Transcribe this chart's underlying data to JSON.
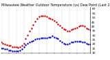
{
  "title": "Milwaukee Weather Outdoor Temperature (vs) Dew Point (Last 24 Hours)",
  "temp_color": "#cc0000",
  "dew_color": "#0000cc",
  "background_color": "#ffffff",
  "grid_color": "#999999",
  "ylim": [
    10,
    62
  ],
  "yticks": [
    10,
    15,
    20,
    25,
    30,
    35,
    40,
    45,
    50,
    55,
    60
  ],
  "ytick_labels": [
    "10",
    "15",
    "20",
    "25",
    "30",
    "35",
    "40",
    "45",
    "50",
    "55",
    "60"
  ],
  "temp_values": [
    22,
    21,
    20,
    19,
    18,
    18,
    17,
    17,
    17,
    16,
    17,
    18,
    21,
    26,
    30,
    35,
    38,
    42,
    46,
    49,
    51,
    52,
    52,
    52,
    51,
    50,
    49,
    48,
    47,
    45,
    43,
    41,
    39,
    37,
    36,
    35,
    35,
    36,
    37,
    38,
    39,
    40,
    41,
    41,
    40,
    38,
    37,
    36
  ],
  "dew_values": [
    15,
    15,
    14,
    14,
    13,
    13,
    12,
    12,
    12,
    12,
    13,
    14,
    17,
    19,
    21,
    22,
    23,
    24,
    25,
    26,
    26,
    27,
    27,
    27,
    27,
    28,
    28,
    29,
    28,
    27,
    26,
    24,
    22,
    21,
    20,
    20,
    21,
    22,
    22,
    23,
    23,
    23,
    23,
    22,
    22,
    21,
    20,
    20
  ],
  "n_points": 48,
  "vline_interval": 4,
  "title_fontsize": 3.5,
  "tick_fontsize": 3.2,
  "marker_size": 1.5
}
